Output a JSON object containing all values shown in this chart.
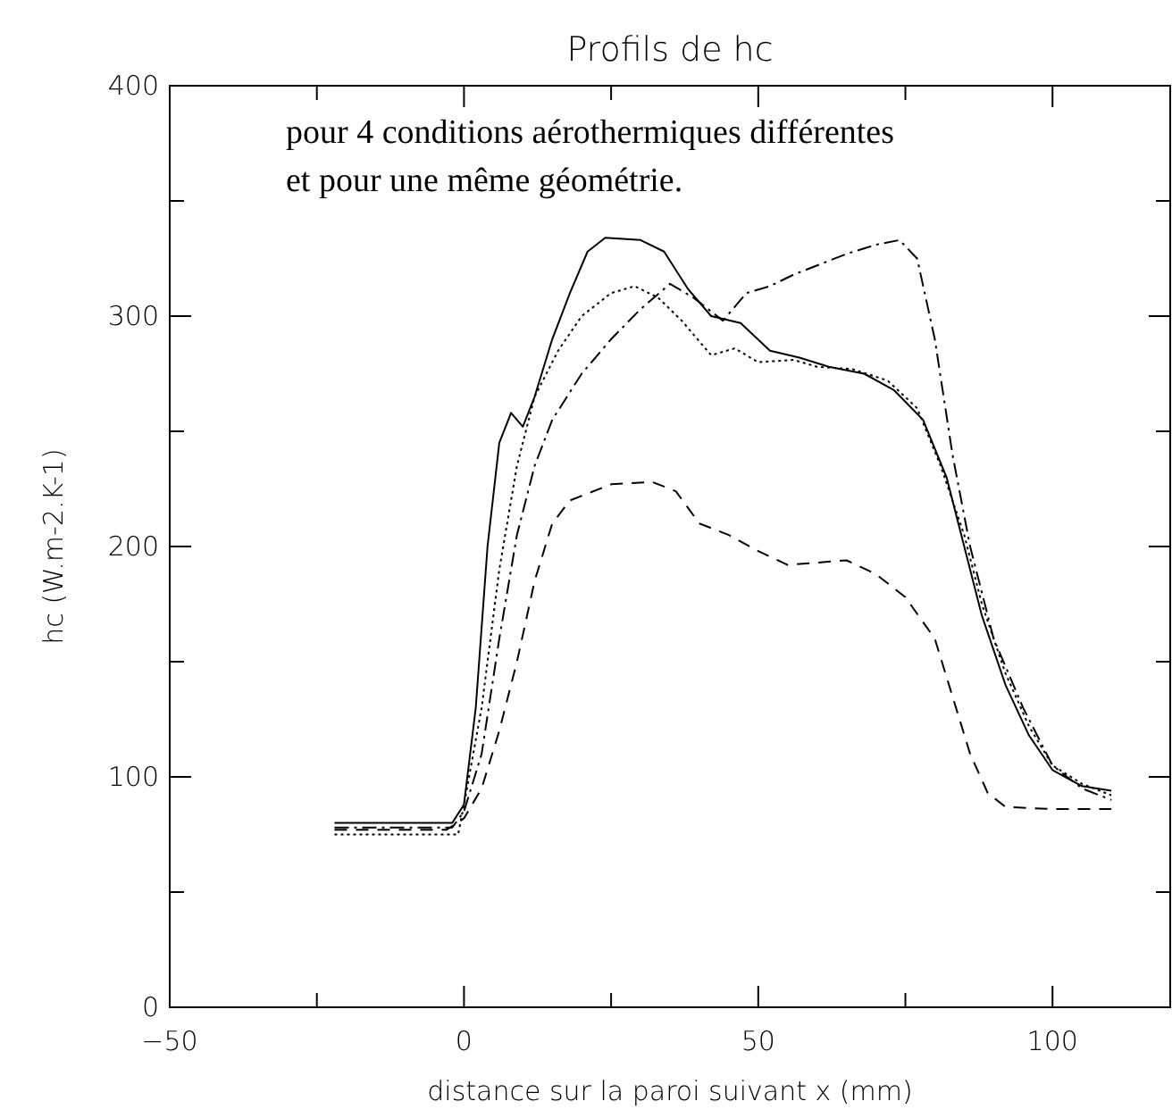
{
  "chart_data": {
    "type": "line",
    "title": "Profils de hc",
    "xlabel": "distance sur la paroi suivant x (mm)",
    "ylabel": "hc (W.m-2.K-1)",
    "annotations": [
      "pour 4 conditions aérothermiques différentes",
      "et pour une même géométrie."
    ],
    "xlim": [
      -50,
      120
    ],
    "xticks": [
      -50,
      {
        "value": -25,
        "label": null
      },
      0,
      {
        "value": 25,
        "label": null
      },
      50,
      {
        "value": 75,
        "label": null
      },
      100
    ],
    "ylim": [
      0,
      400
    ],
    "yticks": [
      0,
      {
        "value": 50,
        "label": null
      },
      100,
      {
        "value": 150,
        "label": null
      },
      200,
      {
        "value": 250,
        "label": null
      },
      300,
      {
        "value": 350,
        "label": null
      },
      400
    ],
    "grid": false,
    "marker": "none",
    "series": [
      {
        "color": "#000000",
        "line_style": "solid",
        "x": [
          -22,
          -2,
          0,
          2,
          4,
          6,
          8,
          10,
          12,
          15,
          18,
          21,
          24,
          30,
          34,
          38,
          42,
          47,
          52,
          57,
          62,
          68,
          73,
          78,
          82,
          85,
          88,
          92,
          96,
          100,
          105,
          110
        ],
        "values": [
          80,
          80,
          88,
          130,
          200,
          245,
          258,
          252,
          265,
          290,
          310,
          328,
          334,
          333,
          328,
          312,
          300,
          297,
          285,
          282,
          278,
          275,
          268,
          255,
          230,
          200,
          170,
          140,
          118,
          103,
          96,
          94
        ]
      },
      {
        "color": "#000000",
        "line_style": "dotted",
        "x": [
          -22,
          -1,
          0,
          3,
          6,
          9,
          12,
          16,
          20,
          25,
          29,
          33,
          37,
          42,
          46,
          50,
          56,
          60,
          66,
          72,
          77,
          81,
          85,
          88,
          92,
          96,
          100,
          105,
          110
        ],
        "values": [
          75,
          75,
          88,
          130,
          190,
          235,
          265,
          285,
          300,
          310,
          313,
          308,
          298,
          283,
          286,
          280,
          281,
          278,
          277,
          272,
          260,
          235,
          205,
          175,
          145,
          122,
          105,
          97,
          92
        ]
      },
      {
        "color": "#000000",
        "line_style": "dashdot",
        "x": [
          -22,
          -2,
          0,
          3,
          6,
          9,
          12,
          15,
          20,
          25,
          30,
          35,
          39,
          44,
          48,
          52,
          56,
          60,
          65,
          70,
          74,
          77,
          80,
          83,
          86,
          90,
          95,
          100,
          105,
          110
        ],
        "values": [
          78,
          78,
          85,
          110,
          160,
          205,
          235,
          255,
          275,
          290,
          303,
          314,
          308,
          298,
          310,
          313,
          318,
          322,
          327,
          331,
          333,
          325,
          290,
          240,
          200,
          160,
          130,
          105,
          95,
          90
        ]
      },
      {
        "color": "#000000",
        "line_style": "dashed",
        "x": [
          -22,
          -3,
          0,
          3,
          6,
          9,
          12,
          15,
          18,
          25,
          32,
          36,
          40,
          45,
          50,
          55,
          60,
          65,
          70,
          75,
          80,
          83,
          86,
          89,
          92,
          100,
          110
        ],
        "values": [
          77,
          77,
          82,
          95,
          120,
          150,
          185,
          210,
          220,
          227,
          228,
          224,
          210,
          205,
          198,
          192,
          193,
          194,
          188,
          178,
          160,
          135,
          110,
          93,
          87,
          86,
          86
        ]
      }
    ]
  }
}
